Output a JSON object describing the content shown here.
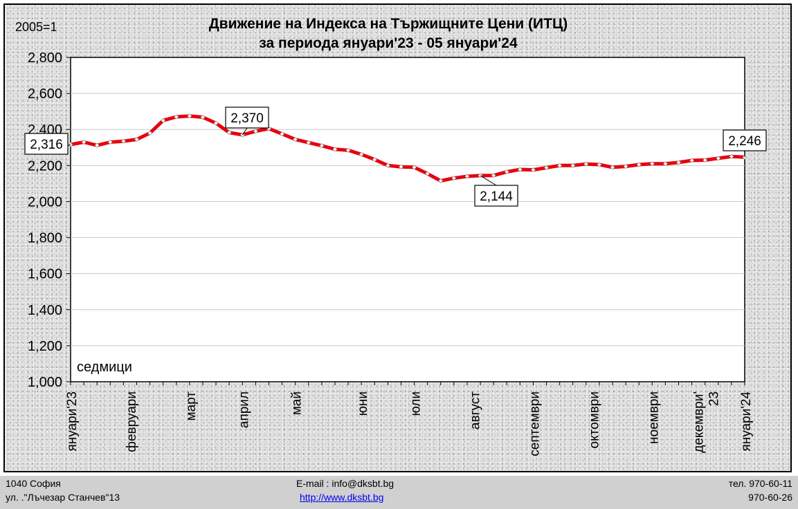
{
  "chart_data": {
    "type": "line",
    "title": "Движение на Индекса на Тържищните Цени (ИТЦ)",
    "subtitle": "за периода януари'23 - 05 януари'24",
    "base_label": "2005=1",
    "xlabel": "седмици",
    "ylim": [
      1.0,
      2.8
    ],
    "y_ticks": [
      "1,000",
      "1,200",
      "1,400",
      "1,600",
      "1,800",
      "2,000",
      "2,200",
      "2,400",
      "2,600",
      "2,800"
    ],
    "y_tick_values": [
      1.0,
      1.2,
      1.4,
      1.6,
      1.8,
      2.0,
      2.2,
      2.4,
      2.6,
      2.8
    ],
    "month_labels": [
      "януари'23",
      "февруари",
      "март",
      "април",
      "май",
      "юни",
      "юли",
      "август",
      "септември",
      "октомври",
      "ноември",
      "декември' 23",
      "януари'24"
    ],
    "month_week_index": [
      0,
      4.5,
      9,
      13,
      17,
      22,
      26,
      30.5,
      35,
      39.5,
      44,
      48,
      51
    ],
    "series": [
      {
        "values": [
          2.316,
          2.33,
          2.312,
          2.33,
          2.335,
          2.345,
          2.38,
          2.45,
          2.47,
          2.475,
          2.468,
          2.435,
          2.383,
          2.37,
          2.39,
          2.405,
          2.375,
          2.345,
          2.327,
          2.31,
          2.29,
          2.285,
          2.262,
          2.233,
          2.2,
          2.193,
          2.19,
          2.155,
          2.115,
          2.13,
          2.14,
          2.144,
          2.145,
          2.165,
          2.178,
          2.176,
          2.188,
          2.2,
          2.2,
          2.208,
          2.205,
          2.19,
          2.195,
          2.205,
          2.21,
          2.21,
          2.217,
          2.228,
          2.23,
          2.24,
          2.25,
          2.246
        ]
      }
    ],
    "annotations": [
      {
        "index": 0,
        "text": "2,316"
      },
      {
        "index": 13,
        "text": "2,370"
      },
      {
        "index": 31,
        "text": "2,144"
      },
      {
        "index": 51,
        "text": "2,246"
      }
    ],
    "colors": {
      "line": "#e8000b",
      "marker_fill": "#ffffff",
      "plot_bg": "#ffffff",
      "grid": "#c8c8c8"
    },
    "grid": true
  },
  "footer": {
    "city": "1040 София",
    "street": "ул. .\"Лъчезар Станчев\"13",
    "email": "E-mail : info@dksbt.bg",
    "website": "http://www.dksbt.bg",
    "phone1": "тел. 970-60-11",
    "phone2": "970-60-26"
  }
}
